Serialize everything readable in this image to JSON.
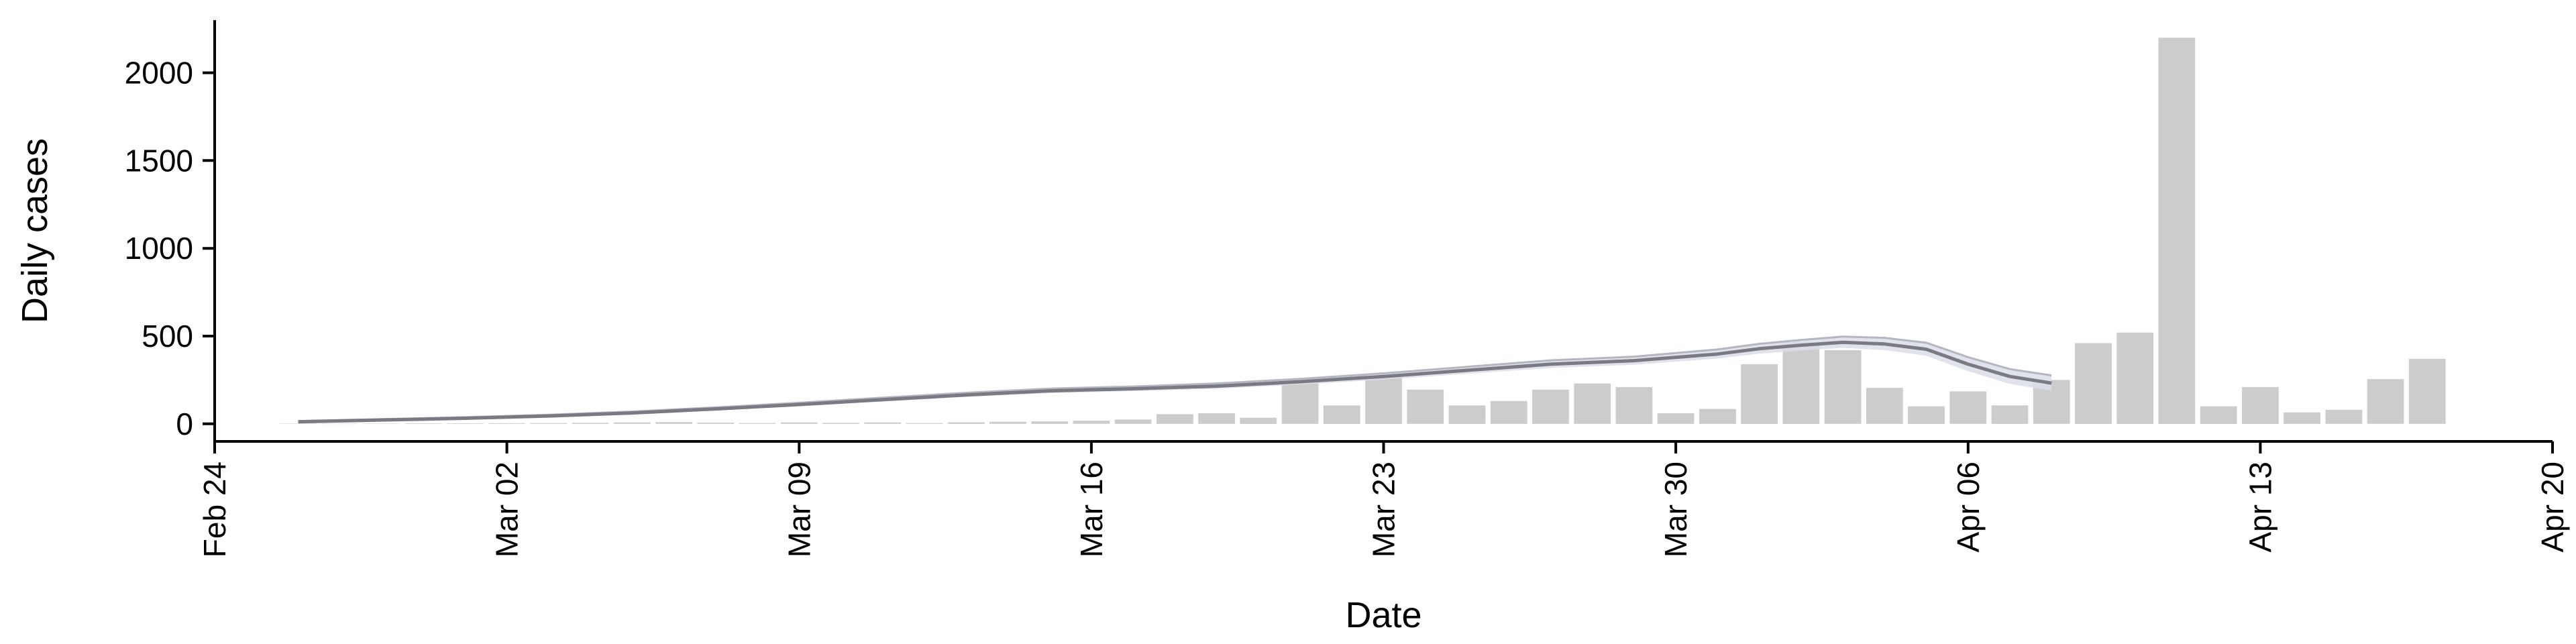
{
  "chart_data": {
    "type": "bar",
    "xlabel": "Date",
    "ylabel": "Daily cases",
    "x_axis": {
      "type": "date",
      "range": [
        "2020-02-24",
        "2020-04-20"
      ],
      "ticks": [
        "2020-02-24",
        "2020-03-02",
        "2020-03-09",
        "2020-03-16",
        "2020-03-23",
        "2020-03-30",
        "2020-04-06",
        "2020-04-13",
        "2020-04-20"
      ],
      "tick_labels": [
        "Feb 24",
        "Mar 02",
        "Mar 09",
        "Mar 16",
        "Mar 23",
        "Mar 30",
        "Apr 06",
        "Apr 13",
        "Apr 20"
      ],
      "tick_label_rotation": "vertical"
    },
    "y_axis": {
      "range": [
        -100,
        2300
      ],
      "ticks": [
        0,
        500,
        1000,
        1500,
        2000
      ],
      "tick_labels": [
        "0",
        "500",
        "1000",
        "1500",
        "2000"
      ]
    },
    "grid": false,
    "bars": {
      "color": "#cccccc",
      "dates": [
        "2020-02-26",
        "2020-02-27",
        "2020-02-28",
        "2020-02-29",
        "2020-03-01",
        "2020-03-02",
        "2020-03-03",
        "2020-03-04",
        "2020-03-05",
        "2020-03-06",
        "2020-03-07",
        "2020-03-08",
        "2020-03-09",
        "2020-03-10",
        "2020-03-11",
        "2020-03-12",
        "2020-03-13",
        "2020-03-14",
        "2020-03-15",
        "2020-03-16",
        "2020-03-17",
        "2020-03-18",
        "2020-03-19",
        "2020-03-20",
        "2020-03-21",
        "2020-03-22",
        "2020-03-23",
        "2020-03-24",
        "2020-03-25",
        "2020-03-26",
        "2020-03-27",
        "2020-03-28",
        "2020-03-29",
        "2020-03-30",
        "2020-03-31",
        "2020-04-01",
        "2020-04-02",
        "2020-04-03",
        "2020-04-04",
        "2020-04-05",
        "2020-04-06",
        "2020-04-07",
        "2020-04-08",
        "2020-04-09",
        "2020-04-10",
        "2020-04-11",
        "2020-04-12",
        "2020-04-13",
        "2020-04-14",
        "2020-04-15",
        "2020-04-16",
        "2020-04-17"
      ],
      "values": [
        2,
        1,
        2,
        3,
        3,
        4,
        5,
        6,
        8,
        10,
        7,
        5,
        8,
        6,
        8,
        5,
        9,
        12,
        14,
        18,
        25,
        55,
        60,
        35,
        245,
        105,
        270,
        195,
        105,
        130,
        195,
        230,
        210,
        60,
        85,
        340,
        465,
        420,
        205,
        100,
        185,
        105,
        250,
        460,
        520,
        2200,
        100,
        210,
        65,
        80,
        255,
        370
      ]
    },
    "trend": {
      "line_color": "#7a7a82",
      "band_color": "#dadde9",
      "dates": [
        "2020-02-26",
        "2020-02-28",
        "2020-03-01",
        "2020-03-03",
        "2020-03-05",
        "2020-03-07",
        "2020-03-09",
        "2020-03-11",
        "2020-03-13",
        "2020-03-15",
        "2020-03-17",
        "2020-03-19",
        "2020-03-21",
        "2020-03-23",
        "2020-03-25",
        "2020-03-27",
        "2020-03-29",
        "2020-03-31",
        "2020-04-01",
        "2020-04-02",
        "2020-04-03",
        "2020-04-04",
        "2020-04-05",
        "2020-04-06",
        "2020-04-07",
        "2020-04-08"
      ],
      "mean": [
        12,
        22,
        32,
        45,
        62,
        85,
        110,
        138,
        165,
        188,
        200,
        215,
        240,
        270,
        305,
        340,
        360,
        398,
        428,
        448,
        465,
        455,
        425,
        340,
        270,
        232
      ],
      "lower": [
        8,
        17,
        26,
        38,
        54,
        76,
        100,
        127,
        153,
        175,
        187,
        200,
        224,
        252,
        285,
        318,
        337,
        372,
        400,
        418,
        433,
        420,
        388,
        300,
        228,
        188
      ],
      "upper": [
        16,
        27,
        38,
        52,
        70,
        94,
        120,
        149,
        177,
        201,
        213,
        230,
        256,
        288,
        325,
        362,
        383,
        424,
        456,
        478,
        497,
        490,
        462,
        380,
        312,
        276
      ]
    }
  }
}
